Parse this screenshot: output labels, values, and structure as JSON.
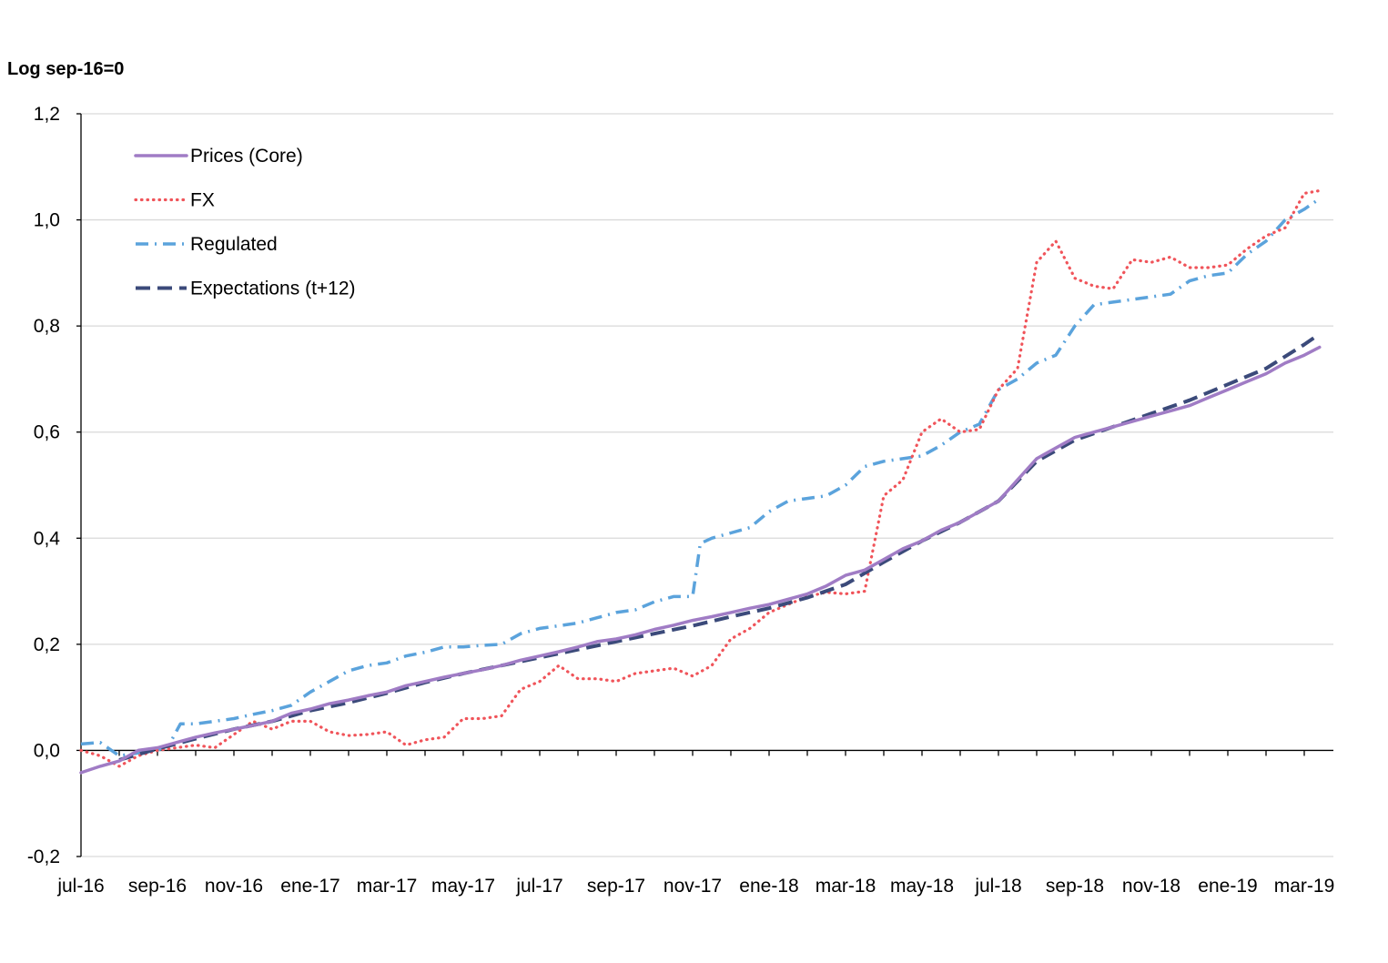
{
  "chart_data": {
    "type": "line",
    "ylabel": "Log  sep-16=0",
    "ylim": [
      -0.2,
      1.2
    ],
    "yticks": [
      "-0,2",
      "0,0",
      "0,2",
      "0,4",
      "0,6",
      "0,8",
      "1,0",
      "1,2"
    ],
    "ytick_values": [
      -0.2,
      0.0,
      0.2,
      0.4,
      0.6,
      0.8,
      1.0,
      1.2
    ],
    "xticks": [
      "jul-16",
      "sep-16",
      "nov-16",
      "ene-17",
      "mar-17",
      "may-17",
      "jul-17",
      "sep-17",
      "nov-17",
      "ene-18",
      "mar-18",
      "may-18",
      "jul-18",
      "sep-18",
      "nov-18",
      "ene-19",
      "mar-19"
    ],
    "x_start": "jul-16",
    "x_end": "abr-19",
    "grid": "horizontal",
    "legend_position": "top-left",
    "series": [
      {
        "name": "Prices (Core)",
        "color": "#a07cc5",
        "style": "solid",
        "points": [
          [
            0,
            -0.042
          ],
          [
            0.5,
            -0.03
          ],
          [
            1,
            -0.02
          ],
          [
            1.5,
            0.0
          ],
          [
            2,
            0.005
          ],
          [
            2.5,
            0.015
          ],
          [
            3,
            0.025
          ],
          [
            3.5,
            0.033
          ],
          [
            4,
            0.04
          ],
          [
            4.5,
            0.047
          ],
          [
            5,
            0.055
          ],
          [
            5.5,
            0.07
          ],
          [
            6,
            0.078
          ],
          [
            6.5,
            0.088
          ],
          [
            7,
            0.095
          ],
          [
            7.5,
            0.103
          ],
          [
            8,
            0.11
          ],
          [
            8.5,
            0.122
          ],
          [
            9,
            0.13
          ],
          [
            9.5,
            0.138
          ],
          [
            10,
            0.145
          ],
          [
            10.5,
            0.152
          ],
          [
            11,
            0.16
          ],
          [
            11.5,
            0.17
          ],
          [
            12,
            0.178
          ],
          [
            12.5,
            0.186
          ],
          [
            13,
            0.195
          ],
          [
            13.5,
            0.205
          ],
          [
            14,
            0.21
          ],
          [
            14.5,
            0.218
          ],
          [
            15,
            0.228
          ],
          [
            15.5,
            0.236
          ],
          [
            16,
            0.245
          ],
          [
            16.5,
            0.252
          ],
          [
            17,
            0.26
          ],
          [
            17.5,
            0.268
          ],
          [
            18,
            0.275
          ],
          [
            18.5,
            0.285
          ],
          [
            19,
            0.295
          ],
          [
            19.5,
            0.31
          ],
          [
            20,
            0.33
          ],
          [
            20.5,
            0.34
          ],
          [
            21,
            0.36
          ],
          [
            21.5,
            0.38
          ],
          [
            22,
            0.395
          ],
          [
            22.5,
            0.415
          ],
          [
            23,
            0.43
          ],
          [
            23.5,
            0.45
          ],
          [
            24,
            0.47
          ],
          [
            24.5,
            0.51
          ],
          [
            25,
            0.55
          ],
          [
            25.5,
            0.57
          ],
          [
            26,
            0.59
          ],
          [
            26.5,
            0.6
          ],
          [
            27,
            0.61
          ],
          [
            27.5,
            0.62
          ],
          [
            28,
            0.63
          ],
          [
            28.5,
            0.64
          ],
          [
            29,
            0.65
          ],
          [
            29.5,
            0.665
          ],
          [
            30,
            0.68
          ],
          [
            30.5,
            0.695
          ],
          [
            31,
            0.71
          ],
          [
            31.5,
            0.73
          ],
          [
            32,
            0.745
          ],
          [
            32.4,
            0.76
          ]
        ]
      },
      {
        "name": "FX",
        "color": "#f0545a",
        "style": "dotted",
        "points": [
          [
            0,
            0.0
          ],
          [
            0.5,
            -0.01
          ],
          [
            1,
            -0.03
          ],
          [
            1.5,
            -0.01
          ],
          [
            2,
            0.0
          ],
          [
            2.5,
            0.005
          ],
          [
            3,
            0.01
          ],
          [
            3.5,
            0.005
          ],
          [
            4,
            0.03
          ],
          [
            4.5,
            0.055
          ],
          [
            5,
            0.04
          ],
          [
            5.5,
            0.055
          ],
          [
            6,
            0.055
          ],
          [
            6.5,
            0.035
          ],
          [
            7,
            0.028
          ],
          [
            7.5,
            0.03
          ],
          [
            8,
            0.035
          ],
          [
            8.5,
            0.01
          ],
          [
            9,
            0.02
          ],
          [
            9.5,
            0.025
          ],
          [
            10,
            0.06
          ],
          [
            10.5,
            0.06
          ],
          [
            11,
            0.065
          ],
          [
            11.5,
            0.115
          ],
          [
            12,
            0.13
          ],
          [
            12.5,
            0.16
          ],
          [
            13,
            0.135
          ],
          [
            13.5,
            0.135
          ],
          [
            14,
            0.13
          ],
          [
            14.5,
            0.145
          ],
          [
            15,
            0.15
          ],
          [
            15.5,
            0.155
          ],
          [
            16,
            0.14
          ],
          [
            16.5,
            0.16
          ],
          [
            17,
            0.21
          ],
          [
            17.5,
            0.23
          ],
          [
            18,
            0.26
          ],
          [
            18.5,
            0.275
          ],
          [
            19,
            0.29
          ],
          [
            19.5,
            0.298
          ],
          [
            20,
            0.295
          ],
          [
            20.5,
            0.3
          ],
          [
            21,
            0.48
          ],
          [
            21.5,
            0.51
          ],
          [
            22,
            0.6
          ],
          [
            22.5,
            0.625
          ],
          [
            23,
            0.6
          ],
          [
            23.5,
            0.605
          ],
          [
            24,
            0.68
          ],
          [
            24.5,
            0.72
          ],
          [
            25,
            0.92
          ],
          [
            25.5,
            0.96
          ],
          [
            26,
            0.89
          ],
          [
            26.5,
            0.875
          ],
          [
            27,
            0.87
          ],
          [
            27.5,
            0.925
          ],
          [
            28,
            0.92
          ],
          [
            28.5,
            0.93
          ],
          [
            29,
            0.91
          ],
          [
            29.5,
            0.91
          ],
          [
            30,
            0.915
          ],
          [
            30.5,
            0.945
          ],
          [
            31,
            0.97
          ],
          [
            31.5,
            0.985
          ],
          [
            32,
            1.05
          ],
          [
            32.4,
            1.055
          ]
        ]
      },
      {
        "name": "Regulated",
        "color": "#5ba3dc",
        "style": "dashdot",
        "points": [
          [
            0,
            0.012
          ],
          [
            0.5,
            0.015
          ],
          [
            1,
            -0.01
          ],
          [
            1.5,
            -0.005
          ],
          [
            2,
            0.0
          ],
          [
            2.3,
            0.01
          ],
          [
            2.6,
            0.05
          ],
          [
            3,
            0.05
          ],
          [
            3.5,
            0.055
          ],
          [
            4,
            0.06
          ],
          [
            4.5,
            0.068
          ],
          [
            5,
            0.075
          ],
          [
            5.5,
            0.085
          ],
          [
            6,
            0.11
          ],
          [
            6.5,
            0.13
          ],
          [
            7,
            0.15
          ],
          [
            7.5,
            0.16
          ],
          [
            8,
            0.165
          ],
          [
            8.5,
            0.178
          ],
          [
            9,
            0.185
          ],
          [
            9.5,
            0.195
          ],
          [
            10,
            0.195
          ],
          [
            10.5,
            0.198
          ],
          [
            11,
            0.2
          ],
          [
            11.5,
            0.22
          ],
          [
            12,
            0.23
          ],
          [
            12.5,
            0.235
          ],
          [
            13,
            0.24
          ],
          [
            13.5,
            0.25
          ],
          [
            14,
            0.26
          ],
          [
            14.5,
            0.265
          ],
          [
            15,
            0.28
          ],
          [
            15.5,
            0.29
          ],
          [
            16,
            0.29
          ],
          [
            16.2,
            0.39
          ],
          [
            16.5,
            0.4
          ],
          [
            17,
            0.41
          ],
          [
            17.5,
            0.42
          ],
          [
            18,
            0.45
          ],
          [
            18.5,
            0.47
          ],
          [
            19,
            0.475
          ],
          [
            19.5,
            0.48
          ],
          [
            20,
            0.5
          ],
          [
            20.5,
            0.535
          ],
          [
            21,
            0.545
          ],
          [
            21.5,
            0.55
          ],
          [
            22,
            0.555
          ],
          [
            22.5,
            0.575
          ],
          [
            23,
            0.6
          ],
          [
            23.5,
            0.615
          ],
          [
            24,
            0.68
          ],
          [
            24.5,
            0.7
          ],
          [
            25,
            0.73
          ],
          [
            25.5,
            0.745
          ],
          [
            26,
            0.8
          ],
          [
            26.5,
            0.84
          ],
          [
            27,
            0.845
          ],
          [
            27.5,
            0.85
          ],
          [
            28,
            0.855
          ],
          [
            28.5,
            0.86
          ],
          [
            29,
            0.885
          ],
          [
            29.5,
            0.895
          ],
          [
            30,
            0.9
          ],
          [
            30.5,
            0.935
          ],
          [
            31,
            0.96
          ],
          [
            31.5,
            1.0
          ],
          [
            32,
            1.02
          ],
          [
            32.4,
            1.04
          ]
        ]
      },
      {
        "name": "Expectations (t+12)",
        "color": "#3b4a7a",
        "style": "dashed",
        "points": [
          [
            1,
            -0.018
          ],
          [
            2,
            0.003
          ],
          [
            3,
            0.022
          ],
          [
            4,
            0.04
          ],
          [
            5,
            0.055
          ],
          [
            6,
            0.075
          ],
          [
            7,
            0.09
          ],
          [
            8,
            0.108
          ],
          [
            9,
            0.128
          ],
          [
            10,
            0.145
          ],
          [
            11,
            0.16
          ],
          [
            12,
            0.175
          ],
          [
            13,
            0.19
          ],
          [
            14,
            0.205
          ],
          [
            15,
            0.22
          ],
          [
            16,
            0.235
          ],
          [
            17,
            0.252
          ],
          [
            18,
            0.268
          ],
          [
            19,
            0.288
          ],
          [
            20,
            0.313
          ],
          [
            21,
            0.355
          ],
          [
            22,
            0.395
          ],
          [
            23,
            0.43
          ],
          [
            24,
            0.47
          ],
          [
            25,
            0.545
          ],
          [
            26,
            0.585
          ],
          [
            27,
            0.61
          ],
          [
            28,
            0.635
          ],
          [
            29,
            0.66
          ],
          [
            30,
            0.69
          ],
          [
            31,
            0.72
          ],
          [
            32,
            0.765
          ],
          [
            32.4,
            0.785
          ]
        ]
      }
    ]
  }
}
